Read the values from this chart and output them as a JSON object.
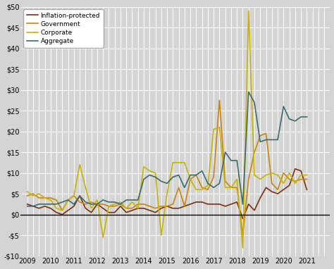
{
  "background_color": "#d4d4d4",
  "plot_bg_color": "#d4d4d4",
  "ylim": [
    -10,
    50
  ],
  "yticks": [
    -10,
    -5,
    0,
    5,
    10,
    15,
    20,
    25,
    30,
    35,
    40,
    45,
    50
  ],
  "x_start_year": 2009,
  "n_years": 13,
  "quarters_per_year": 4,
  "series": {
    "Inflation-protected": {
      "color": "#7b3010",
      "linewidth": 1.2,
      "values": [
        2.5,
        2.0,
        1.5,
        2.0,
        1.5,
        0.5,
        0.0,
        1.0,
        2.0,
        4.5,
        1.5,
        0.5,
        2.5,
        1.5,
        0.5,
        0.5,
        2.0,
        0.5,
        1.0,
        1.5,
        1.5,
        1.0,
        0.5,
        1.5,
        2.0,
        1.5,
        1.5,
        2.0,
        2.5,
        3.0,
        3.0,
        2.5,
        2.5,
        2.5,
        2.0,
        2.5,
        3.0,
        -1.0,
        2.5,
        1.0,
        4.0,
        6.5,
        5.5,
        5.0,
        6.0,
        7.0,
        11.0,
        10.5,
        6.0
      ]
    },
    "Government": {
      "color": "#c8860a",
      "linewidth": 1.2,
      "values": [
        4.5,
        5.0,
        4.0,
        4.0,
        4.0,
        3.5,
        1.0,
        3.5,
        4.5,
        3.0,
        2.5,
        3.0,
        2.5,
        2.5,
        2.0,
        2.0,
        2.5,
        1.5,
        1.5,
        2.5,
        2.5,
        2.0,
        1.5,
        2.0,
        2.0,
        2.5,
        6.5,
        2.0,
        8.5,
        9.5,
        6.5,
        6.0,
        9.0,
        27.5,
        8.0,
        6.5,
        6.5,
        -5.0,
        8.5,
        15.0,
        19.0,
        19.5,
        7.5,
        6.0,
        10.0,
        8.5,
        8.0,
        8.5,
        8.5
      ]
    },
    "Corporate": {
      "color": "#c8b400",
      "linewidth": 1.2,
      "values": [
        5.5,
        4.5,
        5.0,
        4.0,
        3.5,
        1.5,
        1.0,
        3.5,
        4.5,
        12.0,
        6.5,
        1.5,
        3.5,
        -5.5,
        2.0,
        2.5,
        3.0,
        1.5,
        3.0,
        1.5,
        11.5,
        10.5,
        10.0,
        -5.0,
        5.0,
        12.5,
        12.5,
        12.5,
        8.5,
        6.0,
        6.0,
        7.0,
        20.5,
        21.0,
        6.5,
        6.5,
        8.5,
        -8.0,
        49.0,
        9.5,
        8.5,
        9.5,
        10.0,
        9.5,
        7.5,
        10.0,
        7.5,
        9.5,
        9.5
      ]
    },
    "Aggregate": {
      "color": "#3d6b6b",
      "linewidth": 1.2,
      "values": [
        2.0,
        2.0,
        2.5,
        2.5,
        2.5,
        2.5,
        3.0,
        3.5,
        2.5,
        4.5,
        3.0,
        2.5,
        2.5,
        3.5,
        3.0,
        3.0,
        2.5,
        3.5,
        3.5,
        3.5,
        8.5,
        9.5,
        9.0,
        8.0,
        7.5,
        9.0,
        9.5,
        6.5,
        9.5,
        9.5,
        10.5,
        7.5,
        6.5,
        7.5,
        15.0,
        13.0,
        13.0,
        2.5,
        29.5,
        27.0,
        17.5,
        18.0,
        18.0,
        18.0,
        26.0,
        23.0,
        22.5,
        23.5,
        23.5
      ]
    }
  }
}
